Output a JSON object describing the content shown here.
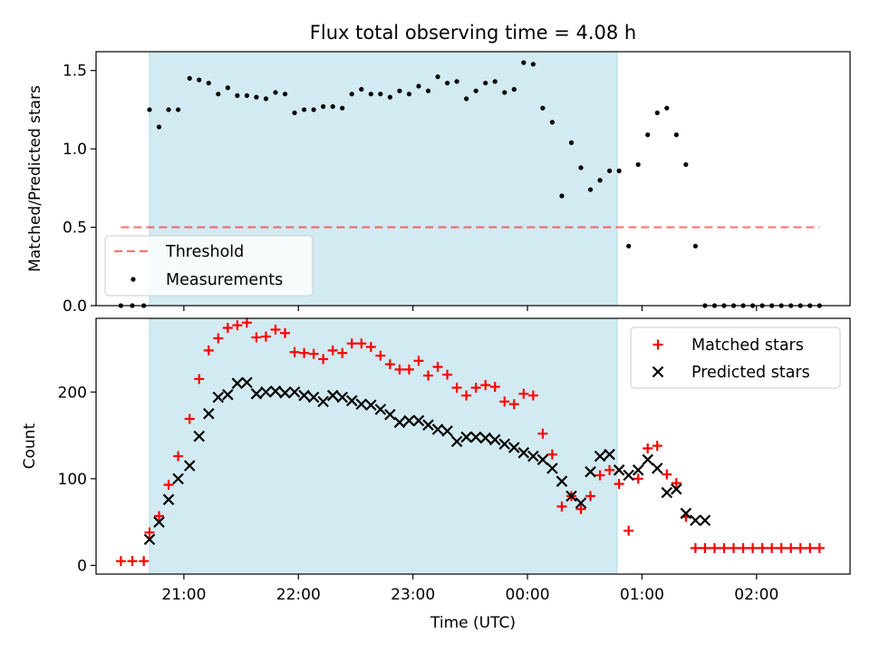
{
  "title": "Flux total observing time = 4.08 h",
  "colors": {
    "shade": "#add8e6",
    "threshold": "#ff0000",
    "measurement": "#000000",
    "matched": "#ff0000",
    "predicted": "#000000"
  },
  "chart_data": [
    {
      "type": "scatter",
      "panel": "top",
      "ylabel": "Matched/Predicted stars",
      "xlabel": "",
      "ylim": [
        0,
        1.62
      ],
      "yticks": [
        0.0,
        0.5,
        1.0,
        1.5
      ],
      "ytick_labels": [
        "0.0",
        "0.5",
        "1.0",
        "1.5"
      ],
      "legend": {
        "position": "lower-left",
        "threshold_label": "Threshold",
        "measurements_label": "Measurements"
      },
      "shaded_span": {
        "start": "20:42",
        "end": "00:47"
      },
      "threshold": {
        "value": 0.5,
        "x_start": "20:27",
        "x_end": "02:33"
      },
      "series": [
        {
          "name": "Measurements",
          "marker": "dot",
          "x": [
            "20:27",
            "20:33",
            "20:39",
            "20:42",
            "20:47",
            "20:52",
            "20:57",
            "21:03",
            "21:08",
            "21:13",
            "21:18",
            "21:23",
            "21:28",
            "21:33",
            "21:38",
            "21:43",
            "21:48",
            "21:53",
            "21:58",
            "22:03",
            "22:08",
            "22:13",
            "22:18",
            "22:23",
            "22:28",
            "22:33",
            "22:38",
            "22:43",
            "22:48",
            "22:53",
            "22:58",
            "23:03",
            "23:08",
            "23:13",
            "23:18",
            "23:23",
            "23:28",
            "23:33",
            "23:38",
            "23:43",
            "23:48",
            "23:53",
            "23:58",
            "00:03",
            "00:08",
            "00:13",
            "00:18",
            "00:23",
            "00:28",
            "00:33",
            "00:38",
            "00:43",
            "00:48",
            "00:53",
            "00:58",
            "01:03",
            "01:08",
            "01:13",
            "01:18",
            "01:23",
            "01:28",
            "01:33",
            "01:38",
            "01:43",
            "01:48",
            "01:53",
            "01:58",
            "02:03",
            "02:08",
            "02:13",
            "02:18",
            "02:23",
            "02:28",
            "02:33"
          ],
          "y": [
            0,
            0,
            0,
            1.25,
            1.14,
            1.25,
            1.25,
            1.45,
            1.44,
            1.42,
            1.35,
            1.39,
            1.34,
            1.34,
            1.33,
            1.32,
            1.36,
            1.35,
            1.23,
            1.25,
            1.25,
            1.27,
            1.27,
            1.26,
            1.35,
            1.38,
            1.35,
            1.35,
            1.33,
            1.37,
            1.35,
            1.4,
            1.37,
            1.46,
            1.42,
            1.43,
            1.32,
            1.37,
            1.42,
            1.43,
            1.36,
            1.38,
            1.55,
            1.54,
            1.26,
            1.17,
            0.7,
            1.04,
            0.88,
            0.74,
            0.8,
            0.86,
            0.86,
            0.38,
            0.9,
            1.09,
            1.23,
            1.26,
            1.09,
            0.9,
            0.38,
            0,
            0,
            0,
            0,
            0,
            0,
            0,
            0,
            0,
            0,
            0,
            0,
            0
          ]
        }
      ]
    },
    {
      "type": "scatter",
      "panel": "bottom",
      "ylabel": "Count",
      "xlabel": "Time (UTC)",
      "ylim": [
        -10,
        285
      ],
      "yticks": [
        0,
        100,
        200
      ],
      "ytick_labels": [
        "0",
        "100",
        "200"
      ],
      "x_range": [
        "20:14",
        "02:49"
      ],
      "xticks": [
        "21:00",
        "22:00",
        "23:00",
        "00:00",
        "01:00",
        "02:00"
      ],
      "legend": {
        "position": "top-right",
        "matched_label": "Matched stars",
        "predicted_label": "Predicted stars"
      },
      "shaded_span": {
        "start": "20:42",
        "end": "00:47"
      },
      "series": [
        {
          "name": "Matched stars",
          "marker": "plus",
          "x": [
            "20:27",
            "20:33",
            "20:39",
            "20:42",
            "20:47",
            "20:52",
            "20:57",
            "21:03",
            "21:08",
            "21:13",
            "21:18",
            "21:23",
            "21:28",
            "21:33",
            "21:38",
            "21:43",
            "21:48",
            "21:53",
            "21:58",
            "22:03",
            "22:08",
            "22:13",
            "22:18",
            "22:23",
            "22:28",
            "22:33",
            "22:38",
            "22:43",
            "22:48",
            "22:53",
            "22:58",
            "23:03",
            "23:08",
            "23:13",
            "23:18",
            "23:23",
            "23:28",
            "23:33",
            "23:38",
            "23:43",
            "23:48",
            "23:53",
            "23:58",
            "00:03",
            "00:08",
            "00:13",
            "00:18",
            "00:23",
            "00:28",
            "00:33",
            "00:38",
            "00:43",
            "00:48",
            "00:53",
            "00:58",
            "01:03",
            "01:08",
            "01:13",
            "01:18",
            "01:23",
            "01:28",
            "01:33",
            "01:38",
            "01:43",
            "01:48",
            "01:53",
            "01:58",
            "02:03",
            "02:08",
            "02:13",
            "02:18",
            "02:23",
            "02:28",
            "02:33"
          ],
          "y": [
            5,
            5,
            5,
            38,
            57,
            93,
            126,
            169,
            215,
            248,
            262,
            274,
            277,
            280,
            263,
            264,
            272,
            268,
            246,
            245,
            244,
            238,
            248,
            245,
            256,
            256,
            252,
            242,
            232,
            226,
            226,
            236,
            219,
            229,
            220,
            205,
            196,
            205,
            208,
            206,
            189,
            186,
            198,
            196,
            152,
            128,
            68,
            80,
            65,
            80,
            104,
            110,
            94,
            40,
            100,
            135,
            138,
            105,
            95,
            56,
            20,
            20,
            20,
            20,
            20,
            20,
            20,
            20,
            20,
            20,
            20,
            20,
            20,
            20
          ]
        },
        {
          "name": "Predicted stars",
          "marker": "x",
          "x": [
            "20:42",
            "20:47",
            "20:52",
            "20:57",
            "21:03",
            "21:08",
            "21:13",
            "21:18",
            "21:23",
            "21:28",
            "21:33",
            "21:38",
            "21:43",
            "21:48",
            "21:53",
            "21:58",
            "22:03",
            "22:08",
            "22:13",
            "22:18",
            "22:23",
            "22:28",
            "22:33",
            "22:38",
            "22:43",
            "22:48",
            "22:53",
            "22:58",
            "23:03",
            "23:08",
            "23:13",
            "23:18",
            "23:23",
            "23:28",
            "23:33",
            "23:38",
            "23:43",
            "23:48",
            "23:53",
            "23:58",
            "00:03",
            "00:08",
            "00:13",
            "00:18",
            "00:23",
            "00:28",
            "00:33",
            "00:38",
            "00:43",
            "00:48",
            "00:53",
            "00:58",
            "01:03",
            "01:08",
            "01:13",
            "01:18",
            "01:23",
            "01:28",
            "01:33"
          ],
          "y": [
            30,
            50,
            76,
            100,
            115,
            149,
            175,
            194,
            197,
            210,
            211,
            198,
            200,
            201,
            199,
            200,
            196,
            194,
            189,
            196,
            194,
            190,
            186,
            185,
            180,
            174,
            165,
            167,
            167,
            162,
            157,
            155,
            143,
            148,
            148,
            147,
            145,
            140,
            136,
            130,
            126,
            122,
            112,
            97,
            80,
            72,
            108,
            126,
            128,
            110,
            104,
            110,
            122,
            112,
            84,
            88,
            60,
            52,
            52
          ]
        }
      ]
    }
  ]
}
